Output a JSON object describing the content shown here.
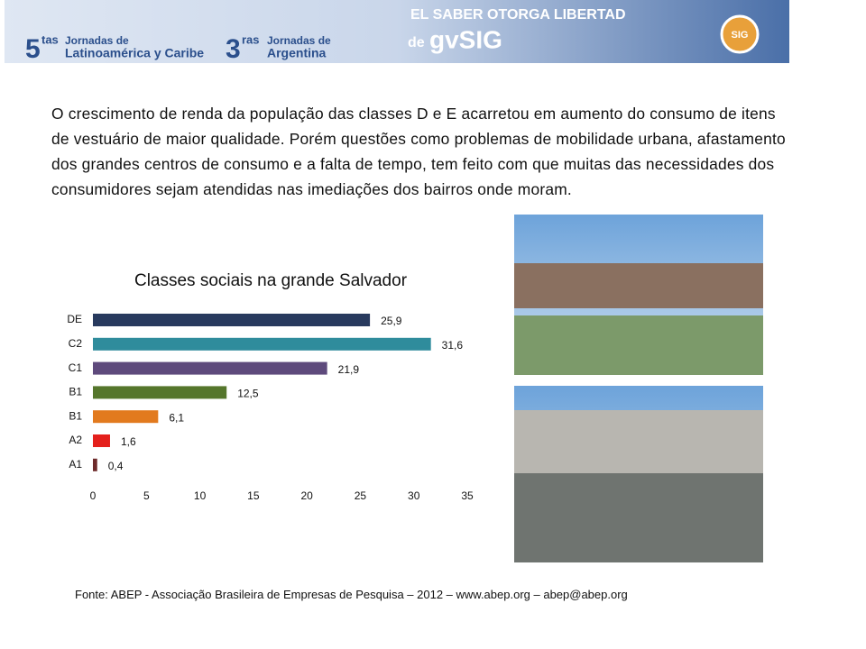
{
  "header": {
    "left_number_1": "5",
    "left_suffix_1": "tas",
    "left_line_1": "Jornadas de",
    "left_line_2": "Latinoamérica y Caribe",
    "left_number_2": "3",
    "left_suffix_2": "ras",
    "left_line_3": "Jornadas de",
    "left_line_4": "Argentina",
    "slogan": "EL SABER OTORGA LIBERTAD",
    "brand_prefix": "de",
    "brand": "gvSIG",
    "logo": "SIG"
  },
  "paragraph": "O crescimento de renda da população das classes D e E acarretou em aumento do consumo de itens de vestuário de maior qualidade. Porém questões como problemas de mobilidade urbana, afastamento dos grandes centros de consumo e a falta de tempo, tem feito com que muitas das necessidades dos consumidores sejam atendidas nas imediações dos bairros onde moram.",
  "footer": "Fonte: ABEP - Associação Brasileira de Empresas de Pesquisa – 2012 – www.abep.org – abep@abep.org",
  "chart_data": {
    "type": "hbar",
    "title": "Classes sociais na grande Salvador",
    "categories": [
      "DE",
      "C2",
      "C1",
      "B1",
      "B1",
      "A2",
      "A1"
    ],
    "values": [
      25.9,
      31.6,
      21.9,
      12.5,
      6.1,
      1.6,
      0.4
    ],
    "value_labels": [
      "25,9",
      "31,6",
      "21,9",
      "12,5",
      "6,1",
      "1,6",
      "0,4"
    ],
    "colors": [
      "#283a5e",
      "#2f8c9c",
      "#5e4a7c",
      "#55762c",
      "#e27a1e",
      "#e4201c",
      "#6e2a2a"
    ],
    "xlim": [
      0,
      35
    ],
    "xticks": [
      0,
      5,
      10,
      15,
      20,
      25,
      30,
      35
    ]
  }
}
